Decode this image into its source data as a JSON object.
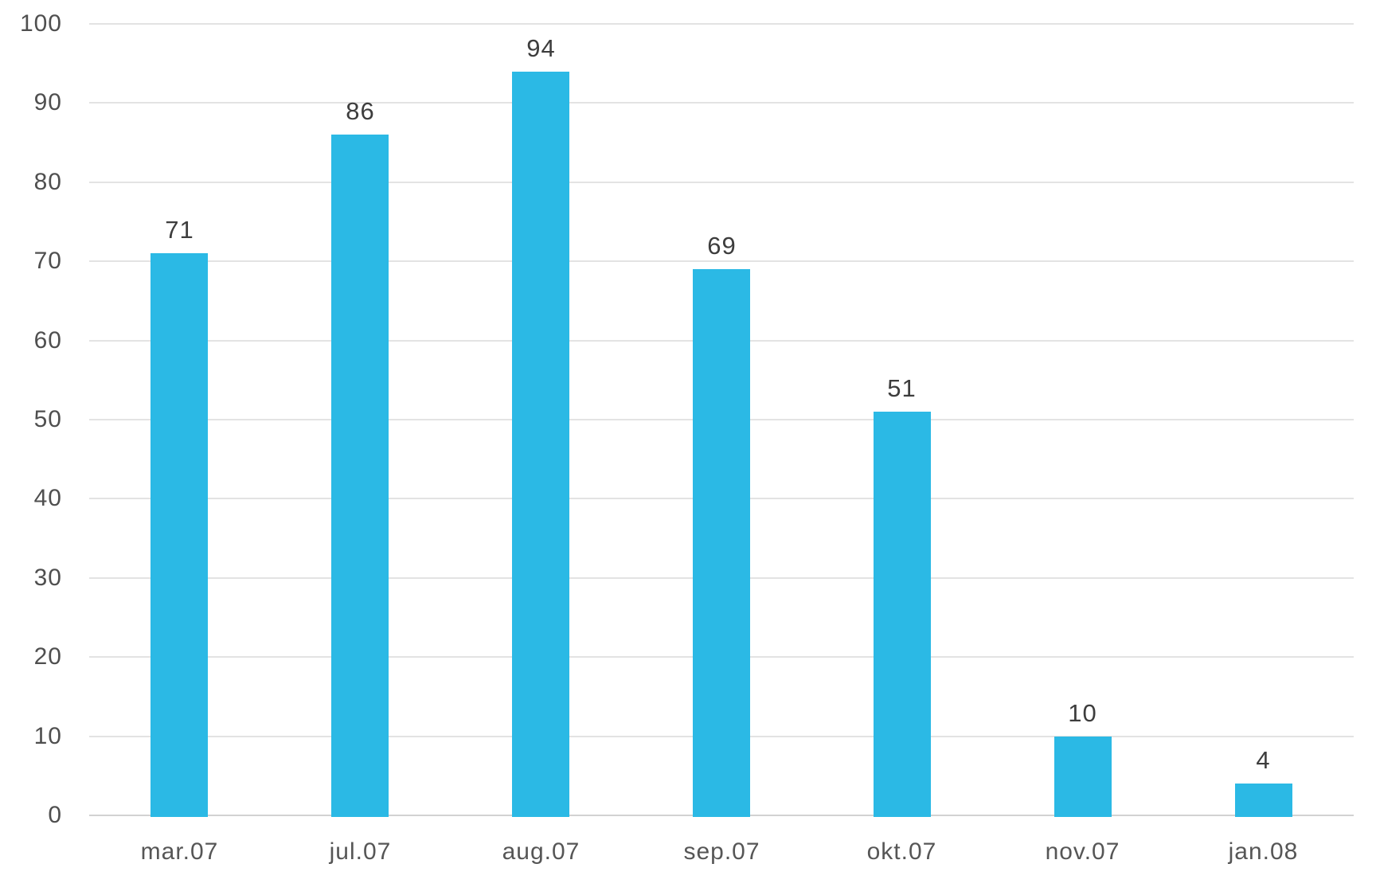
{
  "chart_data": {
    "type": "bar",
    "categories": [
      "mar.07",
      "jul.07",
      "aug.07",
      "sep.07",
      "okt.07",
      "nov.07",
      "jan.08"
    ],
    "values": [
      71,
      86,
      94,
      69,
      51,
      10,
      4
    ],
    "ylim": [
      0,
      100
    ],
    "ytick_interval": 10,
    "ytick_labels": [
      "0",
      "10",
      "20",
      "30",
      "40",
      "50",
      "60",
      "70",
      "80",
      "90",
      "100"
    ],
    "grid": true,
    "legend": false,
    "xlabel": "",
    "ylabel": "",
    "colors": {
      "bar_fill": "#2BB9E5",
      "gridline": "#E3E3E3",
      "baseline": "#D2D2D2",
      "ytick_label": "#4F4F4F",
      "xaxis_label": "#565656",
      "data_label": "#3D3D3D",
      "background": "#FFFFFF"
    }
  }
}
